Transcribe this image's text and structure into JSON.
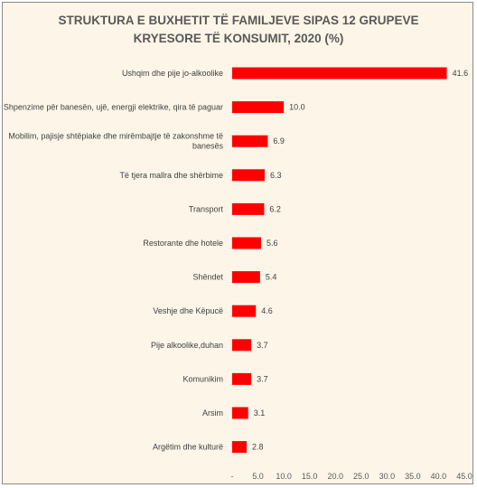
{
  "chart_data": {
    "type": "bar",
    "orientation": "horizontal",
    "title_lines": [
      "STRUKTURA E BUXHETIT TË FAMILJEVE SIPAS 12 GRUPEVE",
      "KRYESORE TË KONSUMIT, 2020 (%)"
    ],
    "categories": [
      [
        "Ushqim dhe pije jo-alkoolike"
      ],
      [
        "Shpenzime për banesën, ujë, energji elektrike, qira të paguar"
      ],
      [
        "Mobilim, pajisje shtëpiake dhe mirëmbajtje të zakonshme të",
        "banesës"
      ],
      [
        "Të tjera mallra dhe shërbime"
      ],
      [
        "Transport"
      ],
      [
        "Restorante dhe hotele"
      ],
      [
        "Shëndet"
      ],
      [
        "Veshje dhe Këpucë"
      ],
      [
        "Pije alkoolike,duhan"
      ],
      [
        "Komunikim"
      ],
      [
        "Arsim"
      ],
      [
        "Argëtim dhe kulturë"
      ]
    ],
    "values": [
      41.6,
      10.0,
      6.9,
      6.3,
      6.2,
      5.6,
      5.4,
      4.6,
      3.7,
      3.7,
      3.1,
      2.8
    ],
    "value_labels": [
      "41.6",
      "10.0",
      "6.9",
      "6.3",
      "6.2",
      "5.6",
      "5.4",
      "4.6",
      "3.7",
      "3.7",
      "3.1",
      "2.8"
    ],
    "xlim": [
      0,
      45
    ],
    "xticks": [
      "-",
      "5.0",
      "10.0",
      "15.0",
      "20.0",
      "25.0",
      "30.0",
      "35.0",
      "40.0",
      "45.0"
    ],
    "xlabel": "",
    "ylabel": "",
    "grid": false,
    "legend": "none",
    "bar_color": "#ff0000",
    "background_color": "#fdf5e8"
  }
}
